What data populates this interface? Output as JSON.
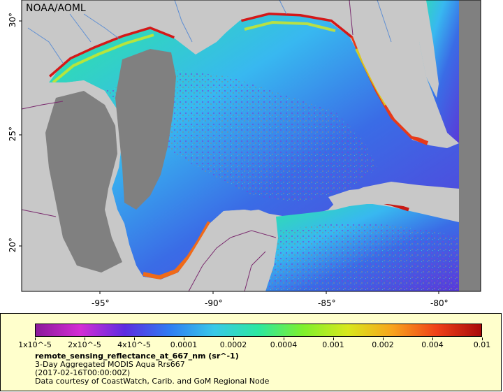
{
  "map": {
    "watermark": "NOAA/AOML",
    "lon_ticks": [
      "-95°",
      "-90°",
      "-85°",
      "-80°"
    ],
    "lat_ticks": [
      "30°",
      "25°",
      "20°"
    ],
    "colors": {
      "land": "#c8c8c8",
      "no_data": "#808080",
      "border": "#7a2a6e",
      "rivers": "#5f8fd3"
    }
  },
  "legend": {
    "colorbar_stops": [
      "#8a1a9a",
      "#d42cd4",
      "#5c2ce0",
      "#2f7cf2",
      "#38c8e8",
      "#2ce8a0",
      "#7ef02c",
      "#d8e81c",
      "#f8a41c",
      "#f04018",
      "#a80a0a"
    ],
    "tick_labels": [
      "1x10^-5",
      "2x10^-5",
      "4x10^-5",
      "0.0001",
      "0.0002",
      "0.0004",
      "0.001",
      "0.002",
      "0.004",
      "0.01"
    ],
    "variable": "remote_sensing_reflectance_at_667_nm (sr^-1)",
    "description": "3-Day Aggregated MODIS Aqua Rrs667",
    "time": "(2017-02-16T00:00:00Z)",
    "credit": "Data courtesy of CoastWatch, Carib. and GoM Regional Node"
  }
}
